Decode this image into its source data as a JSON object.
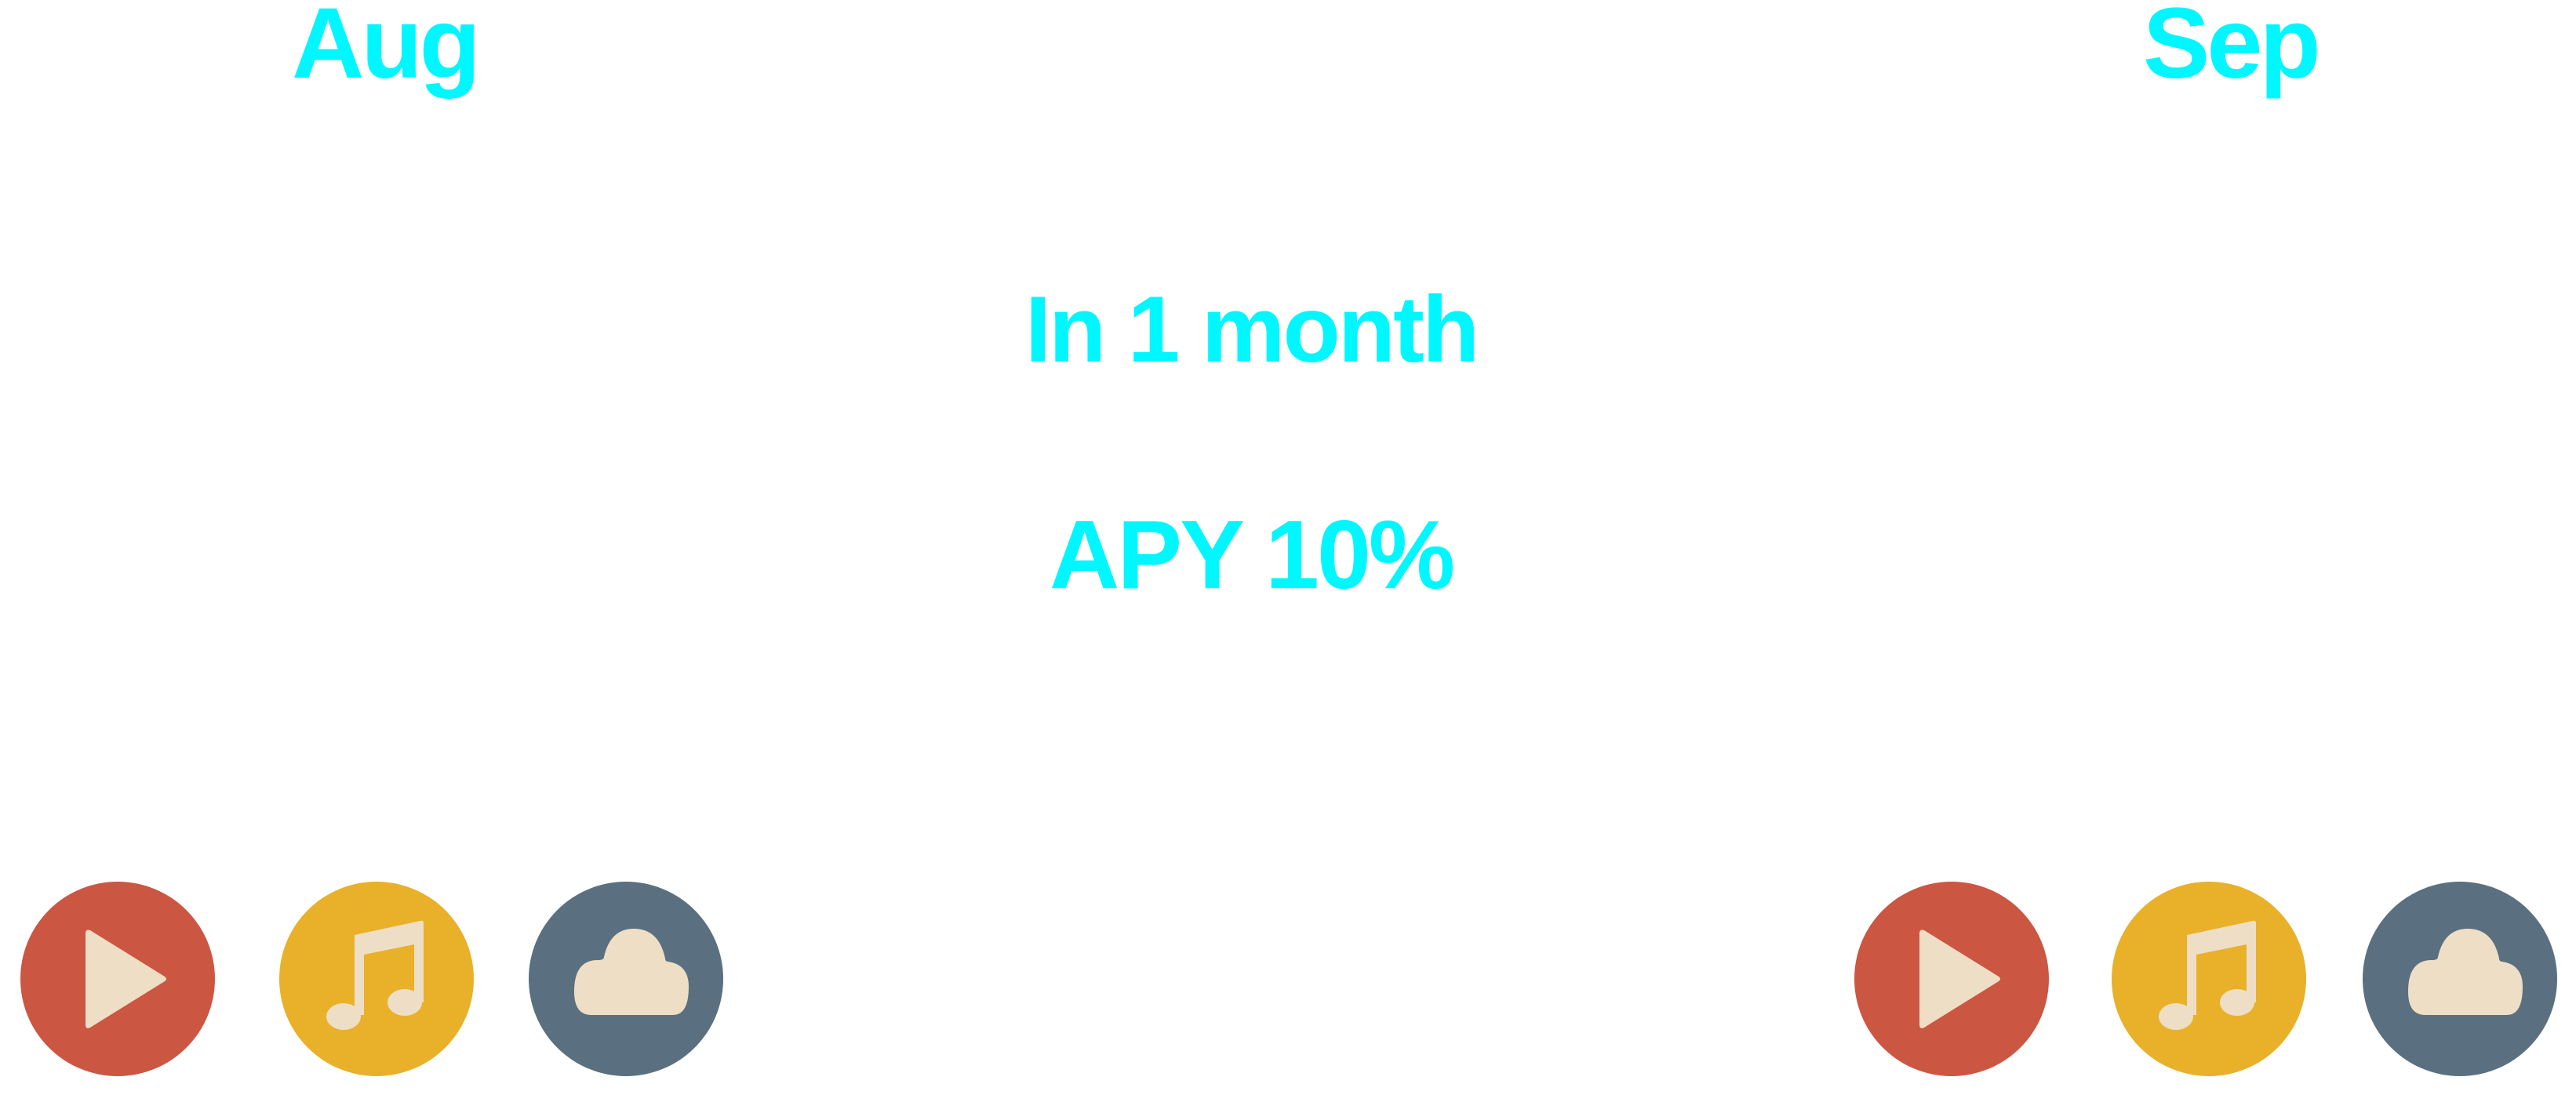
{
  "header": {
    "start_month": "Aug",
    "end_month": "Sep"
  },
  "main": {
    "duration_text": "In 1 month",
    "apy_text": "APY 10%"
  },
  "icon_groups": [
    {
      "icons": [
        "play-icon",
        "music-icon",
        "cloud-icon"
      ]
    },
    {
      "icons": [
        "play-icon",
        "music-icon",
        "cloud-icon"
      ]
    }
  ],
  "colors": {
    "text_accent": "#00f7ff",
    "play_circle": "#cb5642",
    "music_circle": "#e9b12a",
    "cloud_circle": "#5a7080",
    "glyph": "#efdec6",
    "background": "#ffffff"
  }
}
